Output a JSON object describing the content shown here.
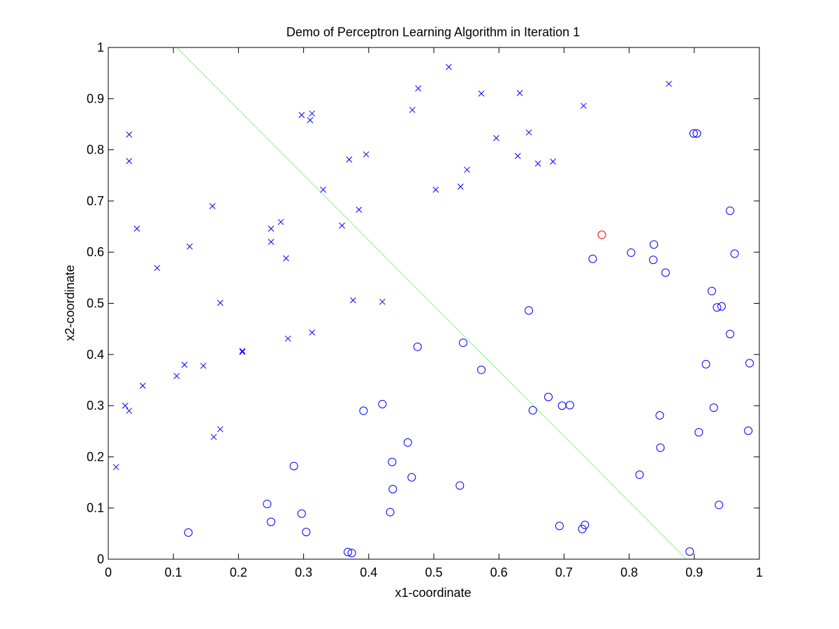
{
  "chart_data": {
    "type": "scatter",
    "title": "Demo of Perceptron Learning Algorithm in Iteration 1",
    "xlabel": "x1-coordinate",
    "ylabel": "x2-coordinate",
    "xlim": [
      0,
      1
    ],
    "ylim": [
      0,
      1
    ],
    "grid": false,
    "xticks": [
      "0",
      "0.1",
      "0.2",
      "0.3",
      "0.4",
      "0.5",
      "0.6",
      "0.7",
      "0.8",
      "0.9",
      "1"
    ],
    "yticks": [
      "0",
      "0.1",
      "0.2",
      "0.3",
      "0.4",
      "0.5",
      "0.6",
      "0.7",
      "0.8",
      "0.9",
      "1"
    ],
    "colors": {
      "points": "#0000ff",
      "highlight": "#ff0000",
      "boundary": "#90ee90",
      "axes": "#000000"
    },
    "series": [
      {
        "marker": "x",
        "color": "#0000ff",
        "points": [
          [
            0.012,
            0.18
          ],
          [
            0.026,
            0.3
          ],
          [
            0.032,
            0.29
          ],
          [
            0.032,
            0.83
          ],
          [
            0.032,
            0.778
          ],
          [
            0.044,
            0.646
          ],
          [
            0.053,
            0.339
          ],
          [
            0.075,
            0.569
          ],
          [
            0.105,
            0.358
          ],
          [
            0.117,
            0.38
          ],
          [
            0.125,
            0.611
          ],
          [
            0.146,
            0.378
          ],
          [
            0.16,
            0.69
          ],
          [
            0.162,
            0.239
          ],
          [
            0.172,
            0.254
          ],
          [
            0.172,
            0.501
          ],
          [
            0.206,
            0.405
          ],
          [
            0.206,
            0.407
          ],
          [
            0.25,
            0.646
          ],
          [
            0.25,
            0.62
          ],
          [
            0.265,
            0.659
          ],
          [
            0.273,
            0.588
          ],
          [
            0.276,
            0.431
          ],
          [
            0.297,
            0.868
          ],
          [
            0.31,
            0.858
          ],
          [
            0.313,
            0.871
          ],
          [
            0.313,
            0.443
          ],
          [
            0.33,
            0.722
          ],
          [
            0.359,
            0.652
          ],
          [
            0.37,
            0.781
          ],
          [
            0.376,
            0.506
          ],
          [
            0.385,
            0.683
          ],
          [
            0.396,
            0.791
          ],
          [
            0.421,
            0.503
          ],
          [
            0.467,
            0.878
          ],
          [
            0.476,
            0.92
          ],
          [
            0.503,
            0.722
          ],
          [
            0.523,
            0.962
          ],
          [
            0.541,
            0.728
          ],
          [
            0.551,
            0.761
          ],
          [
            0.573,
            0.91
          ],
          [
            0.596,
            0.823
          ],
          [
            0.629,
            0.788
          ],
          [
            0.632,
            0.911
          ],
          [
            0.646,
            0.834
          ],
          [
            0.66,
            0.773
          ],
          [
            0.683,
            0.777
          ],
          [
            0.73,
            0.886
          ],
          [
            0.861,
            0.929
          ]
        ]
      },
      {
        "marker": "o",
        "color": "#0000ff",
        "points": [
          [
            0.123,
            0.052
          ],
          [
            0.244,
            0.108
          ],
          [
            0.25,
            0.073
          ],
          [
            0.285,
            0.182
          ],
          [
            0.297,
            0.089
          ],
          [
            0.304,
            0.053
          ],
          [
            0.368,
            0.014
          ],
          [
            0.374,
            0.012
          ],
          [
            0.392,
            0.29
          ],
          [
            0.421,
            0.303
          ],
          [
            0.433,
            0.092
          ],
          [
            0.436,
            0.19
          ],
          [
            0.437,
            0.137
          ],
          [
            0.46,
            0.228
          ],
          [
            0.466,
            0.16
          ],
          [
            0.475,
            0.415
          ],
          [
            0.54,
            0.144
          ],
          [
            0.545,
            0.423
          ],
          [
            0.573,
            0.37
          ],
          [
            0.646,
            0.486
          ],
          [
            0.652,
            0.291
          ],
          [
            0.676,
            0.317
          ],
          [
            0.693,
            0.065
          ],
          [
            0.697,
            0.3
          ],
          [
            0.709,
            0.301
          ],
          [
            0.728,
            0.059
          ],
          [
            0.732,
            0.067
          ],
          [
            0.744,
            0.587
          ],
          [
            0.803,
            0.599
          ],
          [
            0.816,
            0.165
          ],
          [
            0.837,
            0.585
          ],
          [
            0.838,
            0.615
          ],
          [
            0.847,
            0.281
          ],
          [
            0.848,
            0.218
          ],
          [
            0.856,
            0.56
          ],
          [
            0.893,
            0.015
          ],
          [
            0.899,
            0.832
          ],
          [
            0.904,
            0.832
          ],
          [
            0.907,
            0.248
          ],
          [
            0.918,
            0.381
          ],
          [
            0.927,
            0.524
          ],
          [
            0.93,
            0.296
          ],
          [
            0.935,
            0.492
          ],
          [
            0.938,
            0.106
          ],
          [
            0.942,
            0.494
          ],
          [
            0.955,
            0.681
          ],
          [
            0.955,
            0.44
          ],
          [
            0.962,
            0.597
          ],
          [
            0.983,
            0.251
          ],
          [
            0.985,
            0.383
          ]
        ]
      },
      {
        "marker": "o",
        "color": "#ff0000",
        "points": [
          [
            0.758,
            0.634
          ]
        ]
      }
    ],
    "lines": [
      {
        "color": "#90ee90",
        "points": [
          [
            0.105,
            1.0
          ],
          [
            0.888,
            0.0
          ]
        ]
      }
    ]
  }
}
